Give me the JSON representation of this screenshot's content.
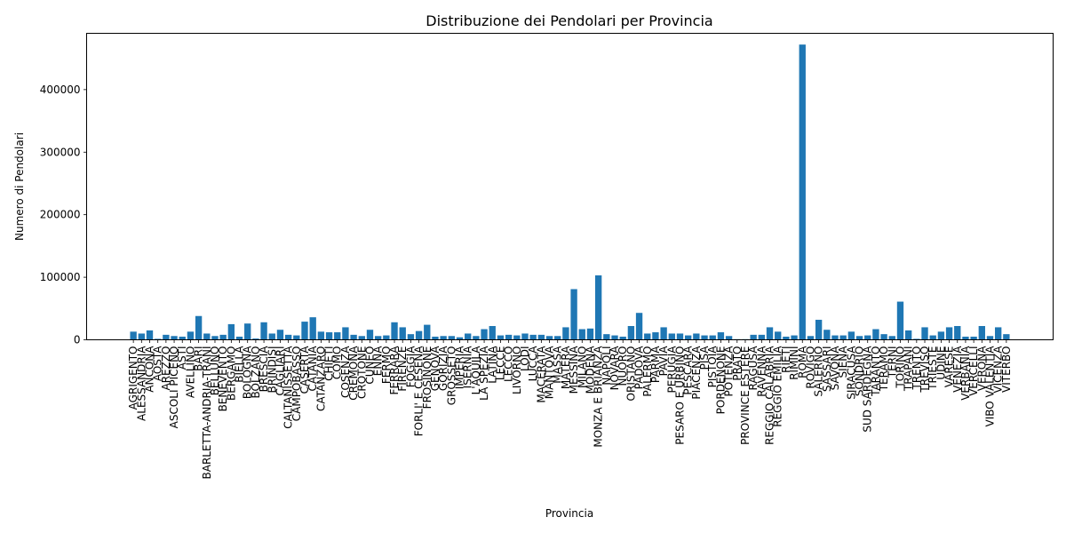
{
  "chart_data": {
    "type": "bar",
    "title": "Distribuzione dei Pendolari per Provincia",
    "xlabel": "Provincia",
    "ylabel": "Numero di Pendolari",
    "ylim": [
      0,
      490000
    ],
    "yticks": [
      0,
      100000,
      200000,
      300000,
      400000
    ],
    "grid": false,
    "bar_color": "#1f77b4",
    "categories": [
      "AGRIGENTO",
      "ALESSANDRIA",
      "ANCONA",
      "AOSTA",
      "AREZZO",
      "ASCOLI PICENO",
      "ASTI",
      "AVELLINO",
      "BARI",
      "BARLETTA-ANDRIA-TRANI",
      "BELLUNO",
      "BENEVENTO",
      "BERGAMO",
      "BIELLA",
      "BOLOGNA",
      "BOLZANO",
      "BRESCIA",
      "BRINDISI",
      "CAGLIARI",
      "CALTANISSETTA",
      "CAMPOBASSO",
      "CASERTA",
      "CATANIA",
      "CATANZARO",
      "CHIETI",
      "COMO",
      "COSENZA",
      "CREMONA",
      "CROTONE",
      "CUNEO",
      "ENNA",
      "FERMO",
      "FERRARA",
      "FIRENZE",
      "FOGGIA",
      "FORLI' E CESENA",
      "FROSINONE",
      "GENOVA",
      "GORIZIA",
      "GROSSETO",
      "IMPERIA",
      "ISERNIA",
      "L'AQUILA",
      "LA SPEZIA",
      "LATINA",
      "LECCE",
      "LECCO",
      "LIVORNO",
      "LODI",
      "LUCCA",
      "MACERATA",
      "MANTOVA",
      "MASSA",
      "MATERA",
      "MESSINA",
      "MILANO",
      "MODENA",
      "MONZA E BRIANZA",
      "NAPOLI",
      "NOVARA",
      "NUORO",
      "ORISTANO",
      "PADOVA",
      "PALERMO",
      "PARMA",
      "PAVIA",
      "PERUGIA",
      "PESARO E URBINO",
      "PESCARA",
      "PIACENZA",
      "PISA",
      "PISTOIA",
      "PORDENONE",
      "POTENZA",
      "PRATO",
      "PROVINCE ESTERE",
      "RAGUSA",
      "RAVENNA",
      "REGGIO CALABRIA",
      "REGGIO EMILIA",
      "RIETI",
      "RIMINI",
      "ROMA",
      "ROVIGO",
      "SALERNO",
      "SASSARI",
      "SAVONA",
      "SIENA",
      "SIRACUSA",
      "SONDRIO",
      "SUD SARDEGNA",
      "TARANTO",
      "TERAMO",
      "TERNI",
      "TORINO",
      "TRAPANI",
      "TRENTO",
      "TREVISO",
      "TRIESTE",
      "UDINE",
      "VARESE",
      "VENEZIA",
      "VERBANIA",
      "VERCELLI",
      "VERONA",
      "VIBO VALENTIA",
      "VICENZA",
      "VITERBO"
    ],
    "values": [
      13000,
      10000,
      15000,
      1500,
      8000,
      6000,
      5000,
      13000,
      38000,
      10000,
      6000,
      8000,
      25000,
      5000,
      26000,
      2000,
      28000,
      10000,
      16000,
      8000,
      7000,
      29000,
      36000,
      13000,
      12000,
      12000,
      20000,
      8000,
      6000,
      16000,
      6000,
      7000,
      28000,
      20000,
      9000,
      14000,
      24000,
      5000,
      6000,
      6000,
      4000,
      10000,
      6000,
      17000,
      22000,
      7000,
      8000,
      7000,
      10000,
      8000,
      8000,
      6000,
      6000,
      20000,
      81000,
      17000,
      18000,
      103000,
      9000,
      7000,
      5000,
      22000,
      43000,
      10000,
      12000,
      20000,
      10000,
      10000,
      7000,
      10000,
      7000,
      7000,
      12000,
      6000,
      1000,
      1000,
      8000,
      8000,
      20000,
      13000,
      5000,
      7000,
      472000,
      6000,
      32000,
      16000,
      7000,
      7000,
      13000,
      6000,
      7000,
      17000,
      9000,
      6000,
      61000,
      15000,
      1500,
      20000,
      7000,
      13000,
      20000,
      22000,
      5000,
      5000,
      22000,
      6000,
      20000,
      9000
    ]
  }
}
